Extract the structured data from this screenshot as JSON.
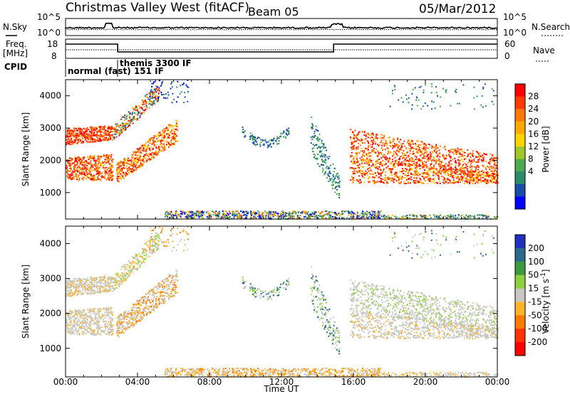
{
  "header": {
    "title": "Christmas Valley West (fitACF)",
    "beam": "Beam 05",
    "date": "05/Mar/2012"
  },
  "panels": {
    "nsky_label": "N.Sky",
    "nsearch_label": "N.Search",
    "freq_label_1": "Freq.",
    "freq_label_2": "[MHz]",
    "nave_label": "Nave",
    "cpid_label": "CPID",
    "cpid_normal": "normal (fast) 151 IF",
    "cpid_themis": "themis 3300 IF",
    "noise_left_ticks": [
      "10^5",
      "10^0"
    ],
    "noise_right_ticks": [
      "10^5",
      "10^0"
    ],
    "freq_left_ticks": [
      "18",
      "8"
    ],
    "freq_right_ticks": [
      "60",
      "0"
    ]
  },
  "chart_data": [
    {
      "type": "heatmap",
      "name": "power",
      "ylabel": "Slant Range [km]",
      "xlabel": "Time UT",
      "xlim": [
        0,
        24
      ],
      "ylim": [
        180,
        4500
      ],
      "yticks": [
        "1000",
        "2000",
        "3000",
        "4000"
      ],
      "colorbar": {
        "label": "Power [dB]",
        "ticks": [
          "28",
          "24",
          "20",
          "16",
          "12",
          "8",
          "4"
        ],
        "colors": [
          "#ff0000",
          "#ff3a00",
          "#ff7800",
          "#ffaa00",
          "#ffd400",
          "#a0c828",
          "#4caa4c",
          "#2a8c6a",
          "#1a4caa",
          "#0000ff"
        ]
      }
    },
    {
      "type": "heatmap",
      "name": "velocity",
      "ylabel": "Slant Range [km]",
      "xlabel": "Time UT",
      "xlim": [
        0,
        24
      ],
      "ylim": [
        180,
        4500
      ],
      "yticks": [
        "1000",
        "2000",
        "3000",
        "4000"
      ],
      "colorbar": {
        "label_main": "Velocity [m s",
        "label_sup": "-1",
        "label_end": "]",
        "ticks": [
          "200",
          "100",
          "50",
          "15",
          "-15",
          "-50",
          "-100",
          "-200"
        ],
        "colors": [
          "#2030c0",
          "#2a6a8a",
          "#3c9a3c",
          "#8cd23c",
          "#c8c8c0",
          "#ffb428",
          "#ff7a00",
          "#ff3200",
          "#ff0000"
        ]
      }
    }
  ],
  "x_axis": {
    "ticks": [
      "00:00",
      "04:00",
      "08:00",
      "12:00",
      "16:00",
      "20:00",
      "00:00"
    ],
    "label": "Time UT"
  }
}
